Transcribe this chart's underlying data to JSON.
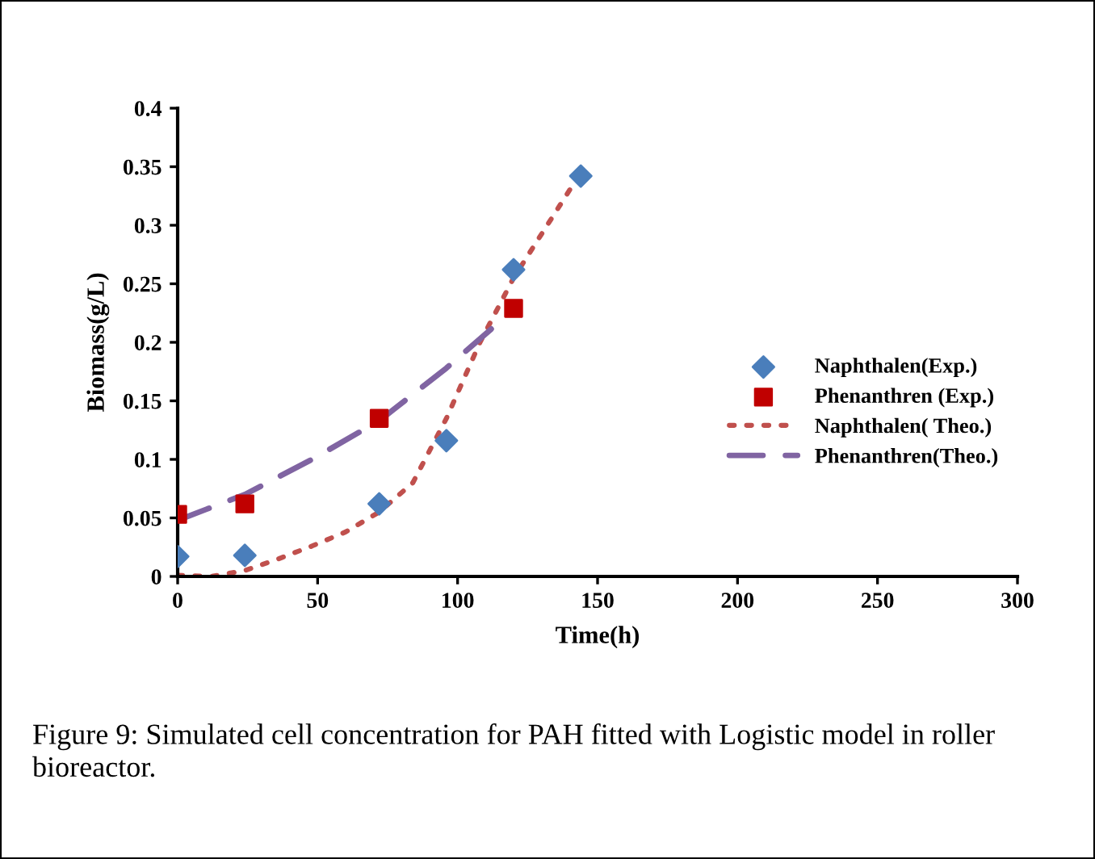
{
  "chart_data": {
    "type": "scatter",
    "xlabel": "Time(h)",
    "ylabel": "Biomass(g/L)",
    "xlim": [
      0,
      300
    ],
    "xticks": [
      0,
      50,
      100,
      150,
      200,
      250,
      300
    ],
    "ylim": [
      0,
      0.4
    ],
    "yticks": [
      0,
      0.05,
      0.1,
      0.15,
      0.2,
      0.25,
      0.3,
      0.35,
      0.4
    ],
    "grid": false,
    "legend": "right",
    "series": [
      {
        "name": "Naphthalen(Exp.)",
        "marker": "diamond",
        "color": "#4a7ebb",
        "x": [
          0,
          24,
          72,
          96,
          120,
          144
        ],
        "values": [
          0.017,
          0.018,
          0.062,
          0.116,
          0.262,
          0.342
        ]
      },
      {
        "name": "Phenanthren (Exp.)",
        "marker": "square",
        "color": "#c00000",
        "x": [
          0,
          24,
          72,
          120
        ],
        "values": [
          0.053,
          0.062,
          0.135,
          0.229
        ]
      },
      {
        "name": "Naphthalen( Theo.)",
        "type": "line",
        "line_style": "dotted",
        "color": "#c0504d",
        "x": [
          0,
          12,
          24,
          36,
          48,
          60,
          72,
          84,
          96,
          108,
          120,
          132,
          144
        ],
        "values": [
          0.001,
          0.0,
          0.005,
          0.015,
          0.026,
          0.038,
          0.055,
          0.08,
          0.135,
          0.2,
          0.255,
          0.3,
          0.345
        ]
      },
      {
        "name": "Phenanthren(Theo.)",
        "type": "line",
        "line_style": "dashed",
        "color": "#8064a2",
        "x": [
          0,
          24,
          48,
          72,
          96,
          120
        ],
        "values": [
          0.048,
          0.07,
          0.1,
          0.133,
          0.178,
          0.228
        ]
      }
    ],
    "annotations": [
      "Figure 9: Simulated cell concentration for PAH fitted with Logistic model in roller bioreactor."
    ]
  }
}
